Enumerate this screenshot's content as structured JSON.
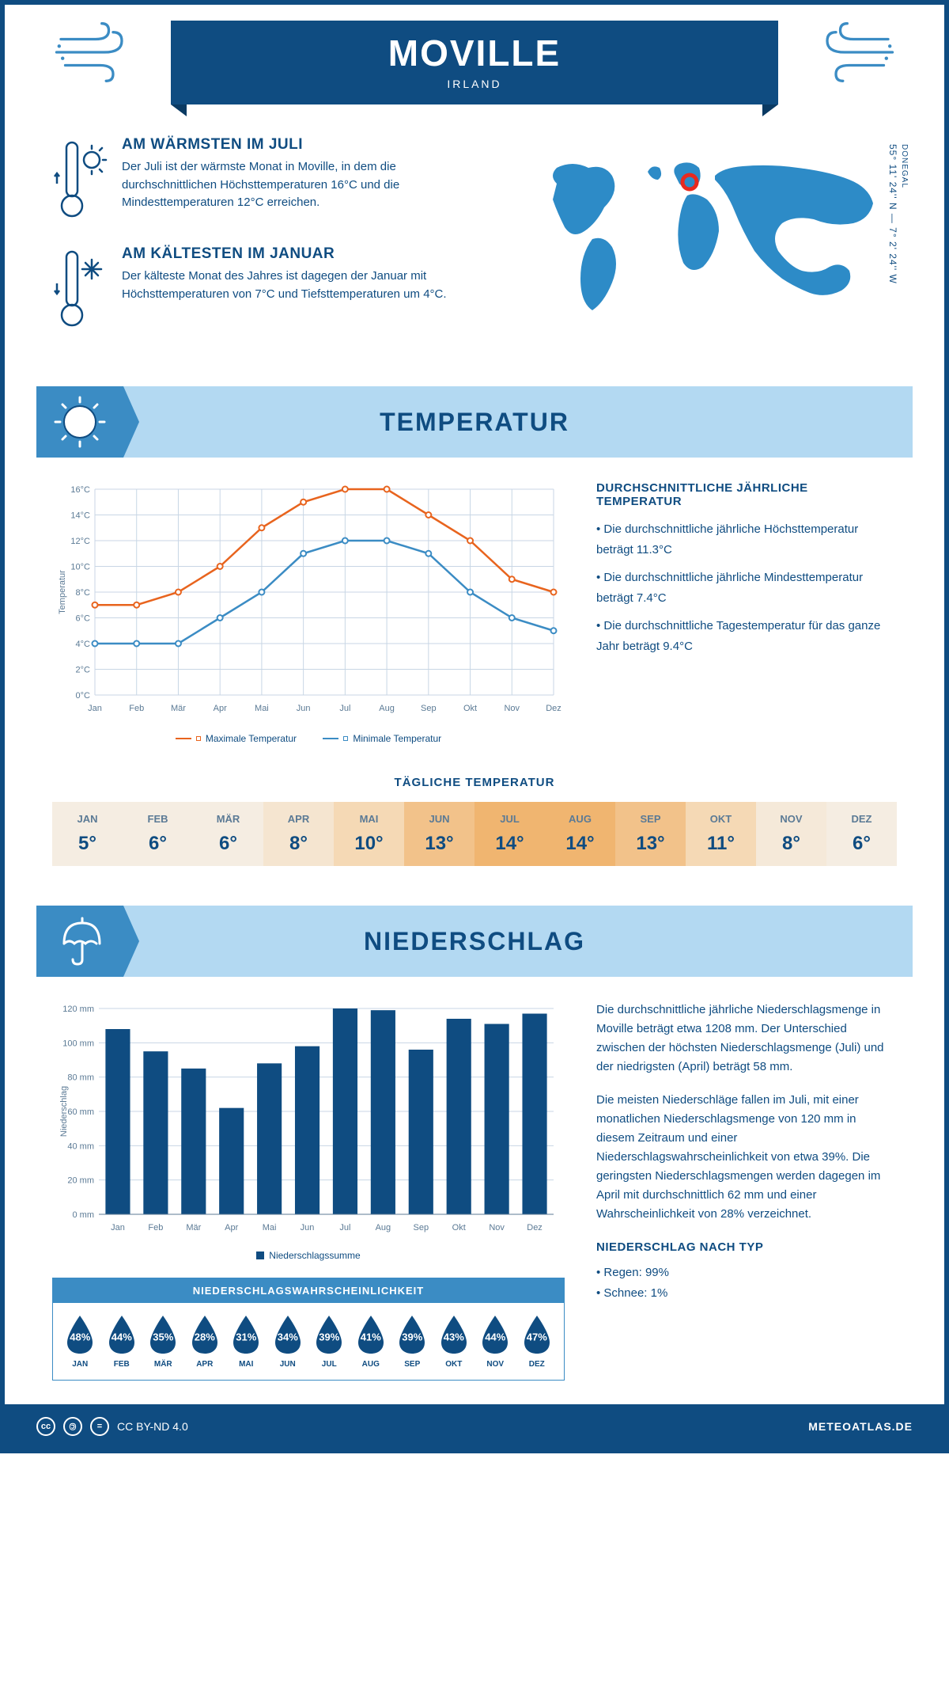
{
  "header": {
    "title": "MOVILLE",
    "subtitle": "IRLAND",
    "coords": "55° 11' 24'' N — 7° 2' 24'' W",
    "region": "DONEGAL"
  },
  "intro": {
    "warmest": {
      "title": "AM WÄRMSTEN IM JULI",
      "text": "Der Juli ist der wärmste Monat in Moville, in dem die durchschnittlichen Höchsttemperaturen 16°C und die Mindesttemperaturen 12°C erreichen."
    },
    "coldest": {
      "title": "AM KÄLTESTEN IM JANUAR",
      "text": "Der kälteste Monat des Jahres ist dagegen der Januar mit Höchsttemperaturen von 7°C und Tiefsttemperaturen um 4°C."
    }
  },
  "temp_section": {
    "banner": "TEMPERATUR",
    "chart": {
      "months": [
        "Jan",
        "Feb",
        "Mär",
        "Apr",
        "Mai",
        "Jun",
        "Jul",
        "Aug",
        "Sep",
        "Okt",
        "Nov",
        "Dez"
      ],
      "max_values": [
        7,
        7,
        8,
        10,
        13,
        15,
        16,
        16,
        14,
        12,
        9,
        8
      ],
      "min_values": [
        4,
        4,
        4,
        6,
        8,
        11,
        12,
        12,
        11,
        8,
        6,
        5
      ],
      "max_color": "#e8641e",
      "min_color": "#3b8cc4",
      "ylim": [
        0,
        16
      ],
      "ytick_step": 2,
      "ylabel": "Temperatur",
      "legend_max": "Maximale Temperatur",
      "legend_min": "Minimale Temperatur",
      "grid_color": "#c8d6e5"
    },
    "text": {
      "title": "DURCHSCHNITTLICHE JÄHRLICHE TEMPERATUR",
      "p1": "• Die durchschnittliche jährliche Höchsttemperatur beträgt 11.3°C",
      "p2": "• Die durchschnittliche jährliche Mindesttemperatur beträgt 7.4°C",
      "p3": "• Die durchschnittliche Tagestemperatur für das ganze Jahr beträgt 9.4°C"
    }
  },
  "daily": {
    "title": "TÄGLICHE TEMPERATUR",
    "months": [
      "JAN",
      "FEB",
      "MÄR",
      "APR",
      "MAI",
      "JUN",
      "JUL",
      "AUG",
      "SEP",
      "OKT",
      "NOV",
      "DEZ"
    ],
    "values": [
      "5°",
      "6°",
      "6°",
      "8°",
      "10°",
      "13°",
      "14°",
      "14°",
      "13°",
      "11°",
      "8°",
      "6°"
    ],
    "colors": [
      "#f5ede2",
      "#f5ede2",
      "#f5ede2",
      "#f5e5d0",
      "#f5d9b5",
      "#f2c28a",
      "#f0b570",
      "#f0b570",
      "#f2c28a",
      "#f5d9b5",
      "#f5e9d9",
      "#f5ede2"
    ]
  },
  "precip_section": {
    "banner": "NIEDERSCHLAG",
    "chart": {
      "months": [
        "Jan",
        "Feb",
        "Mär",
        "Apr",
        "Mai",
        "Jun",
        "Jul",
        "Aug",
        "Sep",
        "Okt",
        "Nov",
        "Dez"
      ],
      "values": [
        108,
        95,
        85,
        62,
        88,
        98,
        120,
        119,
        96,
        114,
        111,
        117
      ],
      "bar_color": "#0f4c81",
      "ylim": [
        0,
        120
      ],
      "ytick_step": 20,
      "ylabel": "Niederschlag",
      "legend": "Niederschlagssumme",
      "grid_color": "#c8d6e5"
    },
    "text": {
      "p1": "Die durchschnittliche jährliche Niederschlagsmenge in Moville beträgt etwa 1208 mm. Der Unterschied zwischen der höchsten Niederschlagsmenge (Juli) und der niedrigsten (April) beträgt 58 mm.",
      "p2": "Die meisten Niederschläge fallen im Juli, mit einer monatlichen Niederschlagsmenge von 120 mm in diesem Zeitraum und einer Niederschlagswahrscheinlichkeit von etwa 39%. Die geringsten Niederschlagsmengen werden dagegen im April mit durchschnittlich 62 mm und einer Wahrscheinlichkeit von 28% verzeichnet.",
      "type_title": "NIEDERSCHLAG NACH TYP",
      "type1": "• Regen: 99%",
      "type2": "• Schnee: 1%"
    },
    "probability": {
      "title": "NIEDERSCHLAGSWAHRSCHEINLICHKEIT",
      "months": [
        "JAN",
        "FEB",
        "MÄR",
        "APR",
        "MAI",
        "JUN",
        "JUL",
        "AUG",
        "SEP",
        "OKT",
        "NOV",
        "DEZ"
      ],
      "values": [
        "48%",
        "44%",
        "35%",
        "28%",
        "31%",
        "34%",
        "39%",
        "41%",
        "39%",
        "43%",
        "44%",
        "47%"
      ],
      "drop_color": "#0f4c81"
    }
  },
  "footer": {
    "license": "CC BY-ND 4.0",
    "site": "METEOATLAS.DE"
  },
  "colors": {
    "primary": "#0f4c81",
    "light_blue": "#b3d9f2",
    "mid_blue": "#3b8cc4",
    "map_blue": "#2d8bc7"
  }
}
